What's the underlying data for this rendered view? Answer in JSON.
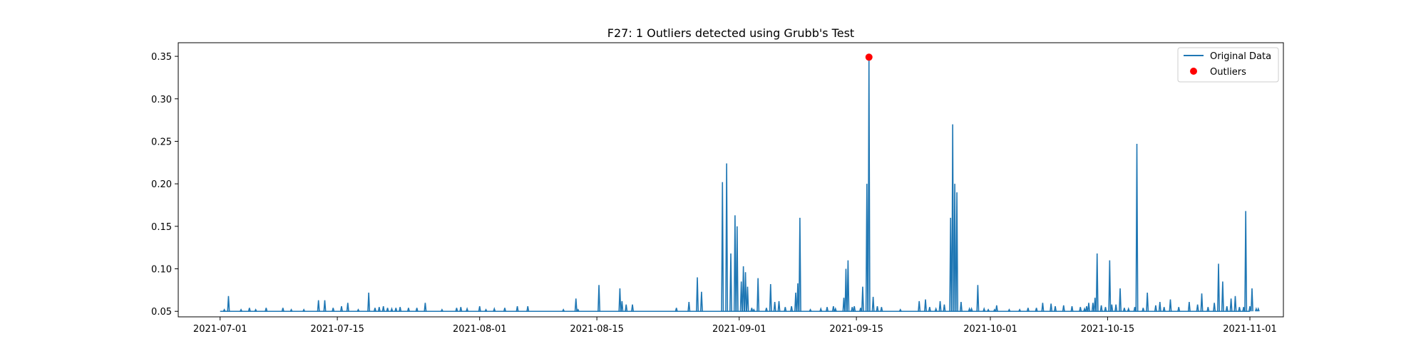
{
  "chart_data": {
    "type": "line",
    "title": "F27: 1 Outliers detected using Grubb's Test",
    "xlabel": "",
    "ylabel": "",
    "x_type": "date",
    "xlim": [
      "2021-06-26",
      "2021-11-05"
    ],
    "ylim": [
      0.0435,
      0.366
    ],
    "x_ticks": [
      "2021-07-01",
      "2021-07-15",
      "2021-08-01",
      "2021-08-15",
      "2021-09-01",
      "2021-09-15",
      "2021-10-01",
      "2021-10-15",
      "2021-11-01"
    ],
    "y_ticks": [
      0.05,
      0.1,
      0.15,
      0.2,
      0.25,
      0.3,
      0.35
    ],
    "y_tick_labels": [
      "0.05",
      "0.10",
      "0.15",
      "0.20",
      "0.25",
      "0.30",
      "0.35"
    ],
    "grid": false,
    "legend": {
      "position": "top-right",
      "entries": [
        "Original Data",
        "Outliers"
      ]
    },
    "baseline": 0.05,
    "date_start": "2021-07-01",
    "date_end": "2021-11-01",
    "series": [
      {
        "name": "Original Data",
        "color": "#1f77b4",
        "style": "line",
        "spikes": [
          [
            "2021-07-01T12:00",
            0.052
          ],
          [
            "2021-07-02T00:00",
            0.068
          ],
          [
            "2021-07-03T12:00",
            0.052
          ],
          [
            "2021-07-04T12:00",
            0.054
          ],
          [
            "2021-07-05T06:00",
            0.052
          ],
          [
            "2021-07-06T12:00",
            0.054
          ],
          [
            "2021-07-08T12:00",
            0.054
          ],
          [
            "2021-07-09T12:00",
            0.052
          ],
          [
            "2021-07-11T00:00",
            0.052
          ],
          [
            "2021-07-12T18:00",
            0.063
          ],
          [
            "2021-07-13T12:00",
            0.063
          ],
          [
            "2021-07-14T12:00",
            0.054
          ],
          [
            "2021-07-15T12:00",
            0.056
          ],
          [
            "2021-07-16T06:00",
            0.06
          ],
          [
            "2021-07-17T12:00",
            0.052
          ],
          [
            "2021-07-18T18:00",
            0.072
          ],
          [
            "2021-07-19T12:00",
            0.054
          ],
          [
            "2021-07-20T00:00",
            0.055
          ],
          [
            "2021-07-20T12:00",
            0.056
          ],
          [
            "2021-07-21T00:00",
            0.054
          ],
          [
            "2021-07-21T12:00",
            0.053
          ],
          [
            "2021-07-22T00:00",
            0.054
          ],
          [
            "2021-07-22T12:00",
            0.055
          ],
          [
            "2021-07-23T12:00",
            0.054
          ],
          [
            "2021-07-24T12:00",
            0.054
          ],
          [
            "2021-07-25T12:00",
            0.06
          ],
          [
            "2021-07-27T12:00",
            0.052
          ],
          [
            "2021-07-29T06:00",
            0.054
          ],
          [
            "2021-07-29T18:00",
            0.055
          ],
          [
            "2021-07-30T12:00",
            0.053
          ],
          [
            "2021-08-01T00:00",
            0.056
          ],
          [
            "2021-08-01T18:00",
            0.052
          ],
          [
            "2021-08-02T18:00",
            0.053
          ],
          [
            "2021-08-04T00:00",
            0.054
          ],
          [
            "2021-08-05T12:00",
            0.056
          ],
          [
            "2021-08-06T18:00",
            0.056
          ],
          [
            "2021-08-11T00:00",
            0.052
          ],
          [
            "2021-08-12T12:00",
            0.065
          ],
          [
            "2021-08-12T18:00",
            0.052
          ],
          [
            "2021-08-15T06:00",
            0.081
          ],
          [
            "2021-08-17T18:00",
            0.077
          ],
          [
            "2021-08-18T00:00",
            0.062
          ],
          [
            "2021-08-18T12:00",
            0.058
          ],
          [
            "2021-08-19T06:00",
            0.058
          ],
          [
            "2021-08-24T12:00",
            0.054
          ],
          [
            "2021-08-26T00:00",
            0.061
          ],
          [
            "2021-08-27T00:00",
            0.09
          ],
          [
            "2021-08-27T12:00",
            0.073
          ],
          [
            "2021-08-30T00:00",
            0.202
          ],
          [
            "2021-08-30T12:00",
            0.224
          ],
          [
            "2021-08-31T00:00",
            0.118
          ],
          [
            "2021-08-31T12:00",
            0.163
          ],
          [
            "2021-08-31T18:00",
            0.15
          ],
          [
            "2021-09-01T06:00",
            0.085
          ],
          [
            "2021-09-01T12:00",
            0.103
          ],
          [
            "2021-09-01T18:00",
            0.096
          ],
          [
            "2021-09-02T00:00",
            0.079
          ],
          [
            "2021-09-02T12:00",
            0.054
          ],
          [
            "2021-09-02T18:00",
            0.052
          ],
          [
            "2021-09-03T06:00",
            0.089
          ],
          [
            "2021-09-04T06:00",
            0.054
          ],
          [
            "2021-09-04T18:00",
            0.082
          ],
          [
            "2021-09-05T06:00",
            0.061
          ],
          [
            "2021-09-05T18:00",
            0.062
          ],
          [
            "2021-09-06T12:00",
            0.055
          ],
          [
            "2021-09-07T06:00",
            0.056
          ],
          [
            "2021-09-07T18:00",
            0.072
          ],
          [
            "2021-09-08T00:00",
            0.083
          ],
          [
            "2021-09-08T06:00",
            0.16
          ],
          [
            "2021-09-09T12:00",
            0.052
          ],
          [
            "2021-09-10T18:00",
            0.053
          ],
          [
            "2021-09-11T12:00",
            0.055
          ],
          [
            "2021-09-12T06:00",
            0.056
          ],
          [
            "2021-09-12T12:00",
            0.053
          ],
          [
            "2021-09-13T12:00",
            0.066
          ],
          [
            "2021-09-13T18:00",
            0.1
          ],
          [
            "2021-09-14T00:00",
            0.11
          ],
          [
            "2021-09-14T12:00",
            0.055
          ],
          [
            "2021-09-14T18:00",
            0.056
          ],
          [
            "2021-09-15T12:00",
            0.054
          ],
          [
            "2021-09-15T18:00",
            0.079
          ],
          [
            "2021-09-16T06:00",
            0.2
          ],
          [
            "2021-09-16T12:00",
            0.349
          ],
          [
            "2021-09-17T00:00",
            0.067
          ],
          [
            "2021-09-17T12:00",
            0.056
          ],
          [
            "2021-09-18T00:00",
            0.055
          ],
          [
            "2021-09-20T06:00",
            0.052
          ],
          [
            "2021-09-22T12:00",
            0.062
          ],
          [
            "2021-09-23T06:00",
            0.064
          ],
          [
            "2021-09-23T18:00",
            0.055
          ],
          [
            "2021-09-24T12:00",
            0.053
          ],
          [
            "2021-09-25T00:00",
            0.062
          ],
          [
            "2021-09-25T12:00",
            0.058
          ],
          [
            "2021-09-26T06:00",
            0.16
          ],
          [
            "2021-09-26T12:00",
            0.27
          ],
          [
            "2021-09-26T18:00",
            0.2
          ],
          [
            "2021-09-27T00:00",
            0.19
          ],
          [
            "2021-09-27T12:00",
            0.061
          ],
          [
            "2021-09-28T12:00",
            0.053
          ],
          [
            "2021-09-28T18:00",
            0.053
          ],
          [
            "2021-09-29T12:00",
            0.081
          ],
          [
            "2021-09-30T06:00",
            0.053
          ],
          [
            "2021-09-30T18:00",
            0.052
          ],
          [
            "2021-10-01T12:00",
            0.052
          ],
          [
            "2021-10-01T18:00",
            0.057
          ],
          [
            "2021-10-03T06:00",
            0.052
          ],
          [
            "2021-10-04T12:00",
            0.052
          ],
          [
            "2021-10-05T12:00",
            0.054
          ],
          [
            "2021-10-06T12:00",
            0.054
          ],
          [
            "2021-10-07T06:00",
            0.06
          ],
          [
            "2021-10-08T06:00",
            0.059
          ],
          [
            "2021-10-08T18:00",
            0.056
          ],
          [
            "2021-10-09T18:00",
            0.057
          ],
          [
            "2021-10-10T18:00",
            0.056
          ],
          [
            "2021-10-11T18:00",
            0.055
          ],
          [
            "2021-10-12T06:00",
            0.053
          ],
          [
            "2021-10-12T12:00",
            0.056
          ],
          [
            "2021-10-12T18:00",
            0.06
          ],
          [
            "2021-10-13T06:00",
            0.06
          ],
          [
            "2021-10-13T12:00",
            0.066
          ],
          [
            "2021-10-13T18:00",
            0.118
          ],
          [
            "2021-10-14T06:00",
            0.057
          ],
          [
            "2021-10-14T18:00",
            0.055
          ],
          [
            "2021-10-15T06:00",
            0.11
          ],
          [
            "2021-10-15T12:00",
            0.058
          ],
          [
            "2021-10-16T00:00",
            0.058
          ],
          [
            "2021-10-16T12:00",
            0.077
          ],
          [
            "2021-10-17T00:00",
            0.054
          ],
          [
            "2021-10-17T12:00",
            0.053
          ],
          [
            "2021-10-18T06:00",
            0.055
          ],
          [
            "2021-10-18T12:00",
            0.247
          ],
          [
            "2021-10-19T06:00",
            0.054
          ],
          [
            "2021-10-19T18:00",
            0.072
          ],
          [
            "2021-10-20T18:00",
            0.057
          ],
          [
            "2021-10-21T06:00",
            0.061
          ],
          [
            "2021-10-21T18:00",
            0.055
          ],
          [
            "2021-10-22T12:00",
            0.064
          ],
          [
            "2021-10-23T12:00",
            0.055
          ],
          [
            "2021-10-24T18:00",
            0.061
          ],
          [
            "2021-10-25T18:00",
            0.058
          ],
          [
            "2021-10-26T06:00",
            0.071
          ],
          [
            "2021-10-27T00:00",
            0.055
          ],
          [
            "2021-10-27T18:00",
            0.06
          ],
          [
            "2021-10-28T06:00",
            0.106
          ],
          [
            "2021-10-28T18:00",
            0.085
          ],
          [
            "2021-10-29T06:00",
            0.056
          ],
          [
            "2021-10-29T18:00",
            0.065
          ],
          [
            "2021-10-30T06:00",
            0.068
          ],
          [
            "2021-10-30T18:00",
            0.055
          ],
          [
            "2021-10-31T06:00",
            0.055
          ],
          [
            "2021-10-31T12:00",
            0.168
          ],
          [
            "2021-11-01T00:00",
            0.056
          ],
          [
            "2021-11-01T06:00",
            0.077
          ],
          [
            "2021-11-01T18:00",
            0.053
          ],
          [
            "2021-11-02T00:00",
            0.053
          ]
        ]
      },
      {
        "name": "Outliers",
        "color": "#ff0000",
        "style": "scatter",
        "points": [
          [
            "2021-09-16T12:00",
            0.349
          ]
        ]
      }
    ]
  }
}
